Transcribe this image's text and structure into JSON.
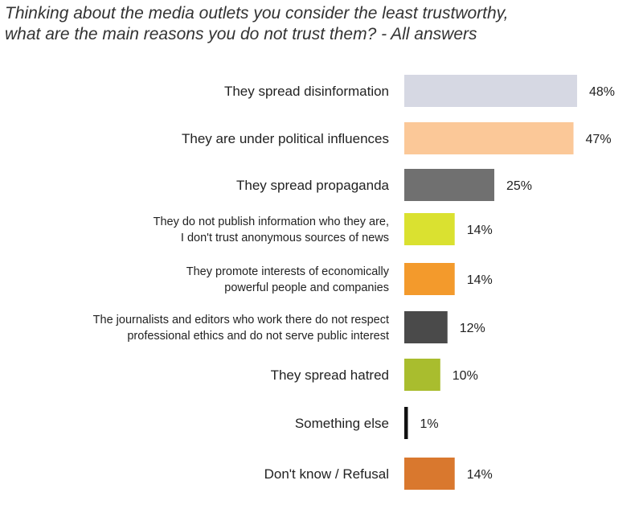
{
  "chart_data": {
    "type": "bar",
    "orientation": "horizontal",
    "title_lines": [
      "Thinking about the media outlets you consider the least trustworthy,",
      "what are the main reasons you do not trust them? - All answers"
    ],
    "categories": [
      [
        "They spread disinformation"
      ],
      [
        "They are under political influences"
      ],
      [
        "They spread propaganda"
      ],
      [
        "They do not publish information who they are,",
        "I don't trust anonymous sources of news"
      ],
      [
        "They promote interests of economically",
        "powerful people and companies"
      ],
      [
        "The journalists and editors who work there do not respect",
        "professional ethics and do not serve public interest"
      ],
      [
        "They spread hatred"
      ],
      [
        "Something else"
      ],
      [
        "Don't know / Refusal"
      ]
    ],
    "values": [
      48,
      47,
      25,
      14,
      14,
      12,
      10,
      1,
      14
    ],
    "value_labels": [
      "48%",
      "47%",
      "25%",
      "14%",
      "14%",
      "12%",
      "10%",
      "1%",
      "14%"
    ],
    "colors": [
      "#d6d8e3",
      "#fbc898",
      "#707070",
      "#dae130",
      "#f39a2c",
      "#4a4a4a",
      "#a9bd2e",
      "#111111",
      "#d9782e"
    ],
    "unit": "%",
    "xlim": [
      0,
      50
    ]
  }
}
